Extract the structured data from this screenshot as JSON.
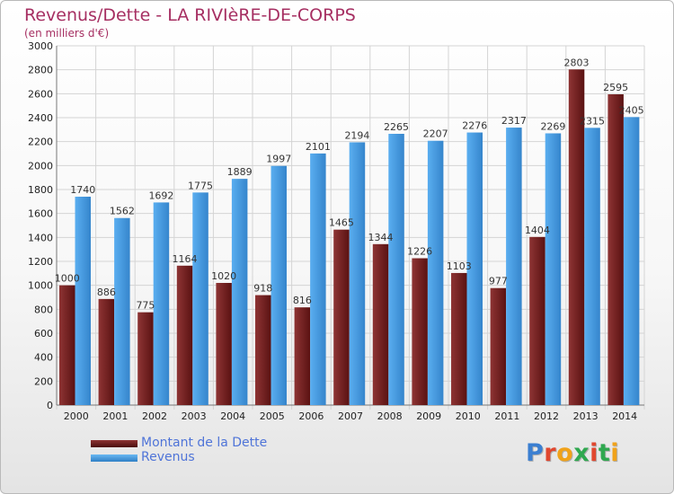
{
  "title": "Revenus/Dette - LA RIVIèRE-DE-CORPS",
  "subtitle": "(en milliers d'€)",
  "colors": {
    "dette": "#6e1f1f",
    "dette_light": "#8e3434",
    "revenus": "#3b8fd8",
    "revenus_light": "#5aaef0",
    "title": "#a62f62",
    "legend_text": "#4f74d8"
  },
  "legend": [
    {
      "label": "Montant de la Dette"
    },
    {
      "label": "Revenus"
    }
  ],
  "logo": {
    "text": "Proxiti"
  },
  "chart_data": {
    "type": "bar",
    "title": "Revenus/Dette - LA RIVIèRE-DE-CORPS",
    "subtitle": "(en milliers d'€)",
    "categories": [
      "2000",
      "2001",
      "2002",
      "2003",
      "2004",
      "2005",
      "2006",
      "2007",
      "2008",
      "2009",
      "2010",
      "2011",
      "2012",
      "2013",
      "2014"
    ],
    "series": [
      {
        "name": "Montant de la Dette",
        "values": [
          1000,
          886,
          775,
          1164,
          1020,
          918,
          816,
          1465,
          1344,
          1226,
          1103,
          977,
          1404,
          2803,
          2595
        ],
        "labels": [
          "1000",
          "886",
          "775",
          "1164",
          "1020",
          "918",
          "816",
          "1465",
          "1344",
          "1226",
          "1103",
          "977",
          "1404",
          "2803",
          "2595"
        ]
      },
      {
        "name": "Revenus",
        "values": [
          1740,
          1562,
          1692,
          1775,
          1889,
          1997,
          2101,
          2194,
          2265,
          2207,
          2276,
          2317,
          2269,
          2315,
          2405
        ],
        "labels": [
          "1740",
          "1562",
          "1692",
          "1775",
          "1889",
          "1997",
          "2101",
          "2194",
          "2265",
          "2207",
          "2276",
          "2317",
          "2269",
          "2315",
          "2405"
        ]
      }
    ],
    "ylim": [
      0,
      3000
    ],
    "yticks": [
      0,
      200,
      400,
      600,
      800,
      1000,
      1200,
      1400,
      1600,
      1800,
      2000,
      2200,
      2400,
      2600,
      2800,
      3000
    ],
    "grid": true,
    "legend_position": "bottom-left"
  }
}
